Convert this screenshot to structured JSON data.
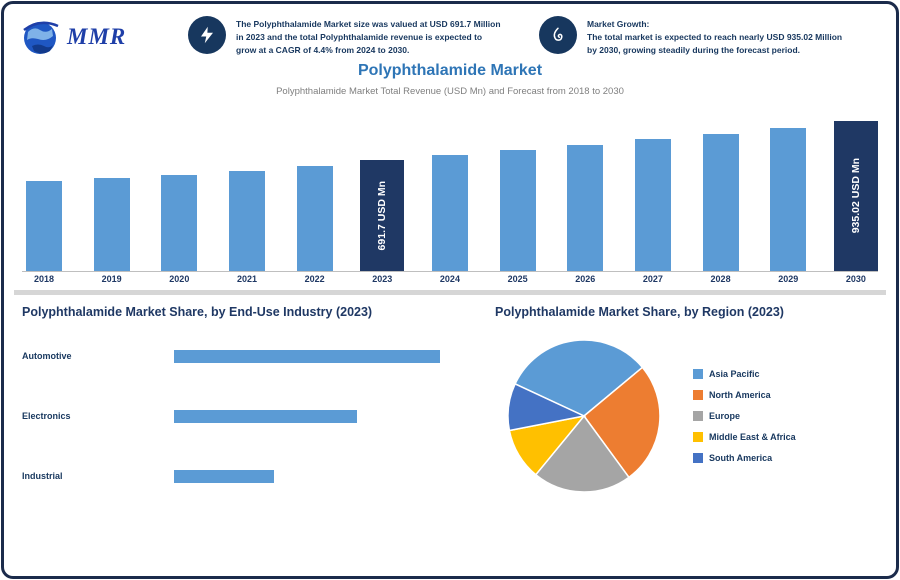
{
  "brand": {
    "name": "MMR"
  },
  "header": {
    "stat1": {
      "icon": "lightning-icon",
      "text": "The Polyphthalamide Market size was valued at USD 691.7 Million in 2023 and the total Polyphthalamide revenue is expected to grow at a CAGR of 4.4% from 2024 to 2030."
    },
    "stat2": {
      "icon": "growth-icon",
      "title": "Market Growth:",
      "text": "The total market is expected to reach nearly USD 935.02 Million by 2030, growing steadily during the forecast period."
    }
  },
  "title": "Polyphthalamide Market",
  "subtitle": "Polyphthalamide Market Total Revenue (USD Mn) and Forecast from 2018 to 2030",
  "colors": {
    "bar_blue": "#5b9bd5",
    "callout_navy": "#1f3864",
    "accent_blue": "#2e75b6",
    "border_navy": "#1b2b4b"
  },
  "chart_data": [
    {
      "type": "bar",
      "title": "Polyphthalamide Market Total Revenue (USD Mn), 2018-2030",
      "categories": [
        "2018",
        "2019",
        "2020",
        "2021",
        "2022",
        "2023",
        "2024",
        "2025",
        "2026",
        "2027",
        "2028",
        "2029",
        "2030"
      ],
      "values": [
        560,
        578,
        596,
        624,
        656,
        691.7,
        722.1,
        753.5,
        786.4,
        820.8,
        856.7,
        894.2,
        935.02
      ],
      "ylabel": "USD Mn",
      "ylim": [
        0,
        935.02
      ],
      "bar_color": "#5b9bd5",
      "callouts": [
        {
          "index": 5,
          "label": "691.7 USD Mn"
        },
        {
          "index": 12,
          "label": "935.02 USD Mn"
        }
      ]
    },
    {
      "type": "bar",
      "orientation": "horizontal",
      "title": "Polyphthalamide Market Share, by End-Use Industry (2023)",
      "categories": [
        "Automotive",
        "Electronics",
        "Industrial"
      ],
      "values": [
        45,
        31,
        17
      ],
      "unit": "%",
      "bar_color": "#5b9bd5"
    },
    {
      "type": "pie",
      "title": "Polyphthalamide Market Share, by Region (2023)",
      "labels": [
        "Asia Pacific",
        "North America",
        "Europe",
        "Middle East & Africa",
        "South America"
      ],
      "values": [
        32,
        26,
        21,
        11,
        10
      ],
      "colors": [
        "#5b9bd5",
        "#ed7d31",
        "#a5a5a5",
        "#ffc000",
        "#4472c4"
      ],
      "legend_position": "right",
      "start_angle_deg": -65
    }
  ]
}
